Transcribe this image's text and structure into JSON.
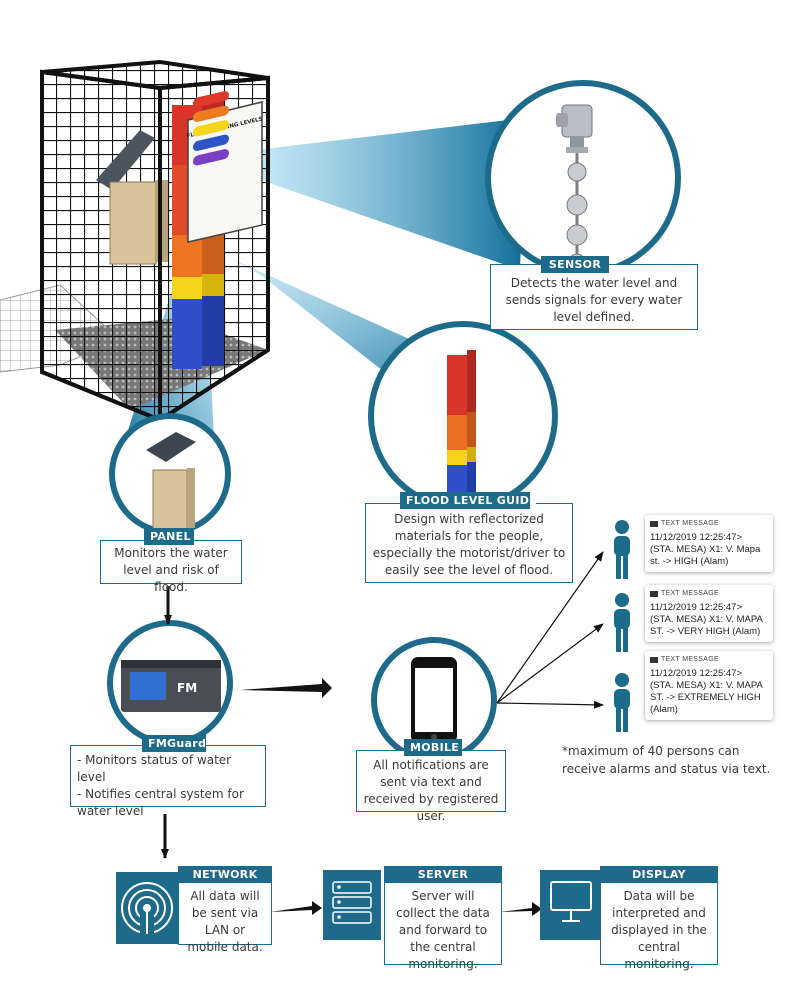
{
  "sensor": {
    "tag": "SENSOR",
    "description": "Detects the water  level and sends signals for every water level defined."
  },
  "flood_guide": {
    "tag": "FLOOD LEVEL GUIDE",
    "description": "Design with reflectorized materials for the people, especially the motorist/driver to easily see the level of flood."
  },
  "panel": {
    "tag": "PANEL",
    "description": "Monitors the water level and risk of flood."
  },
  "fmguard": {
    "tag": "FMGuard",
    "items": [
      "- Monitors status of water level",
      "- Notifies central system for water level"
    ],
    "device_label": "FM"
  },
  "mobile": {
    "tag": "MOBILE",
    "description": "All notifications are sent via text and received by registered user."
  },
  "sign": {
    "title": "FLOOD WARNING LEVELS",
    "levels": [
      {
        "color": "#e0382a"
      },
      {
        "color": "#ee7a21"
      },
      {
        "color": "#f4d51a"
      },
      {
        "color": "#2d55c8"
      },
      {
        "color": "#7a3fc2"
      }
    ]
  },
  "messages": [
    {
      "header": "TEXT MESSAGE",
      "text": "11/12/2019 12:25:47> (STA. MESA) X1: V. Mapa st. -> HIGH (Alam)"
    },
    {
      "header": "TEXT MESSAGE",
      "text": "11/12/2019 12:25:47> (STA. MESA) X1: V. MAPA ST. -> VERY HIGH (Alam)"
    },
    {
      "header": "TEXT MESSAGE",
      "text": "11/12/2019 12:25:47> (STA. MESA) X1: V. MAPA ST. -> EXTREMELY HIGH (Alam)"
    }
  ],
  "note": "*maximum of 40 persons can receive alarms and status via text.",
  "network": {
    "tag": "NETWORK",
    "description": "All data will be sent via LAN or mobile data."
  },
  "server": {
    "tag": "SERVER",
    "description": "Server will collect the data and forward to the central monitoring."
  },
  "display": {
    "tag": "DISPLAY",
    "description": "Data will be interpreted and displayed in the central monitoring."
  },
  "colors": {
    "accent": "#1d6a8b",
    "beam": "#1b9ac8",
    "border": "#1a6d8e"
  }
}
